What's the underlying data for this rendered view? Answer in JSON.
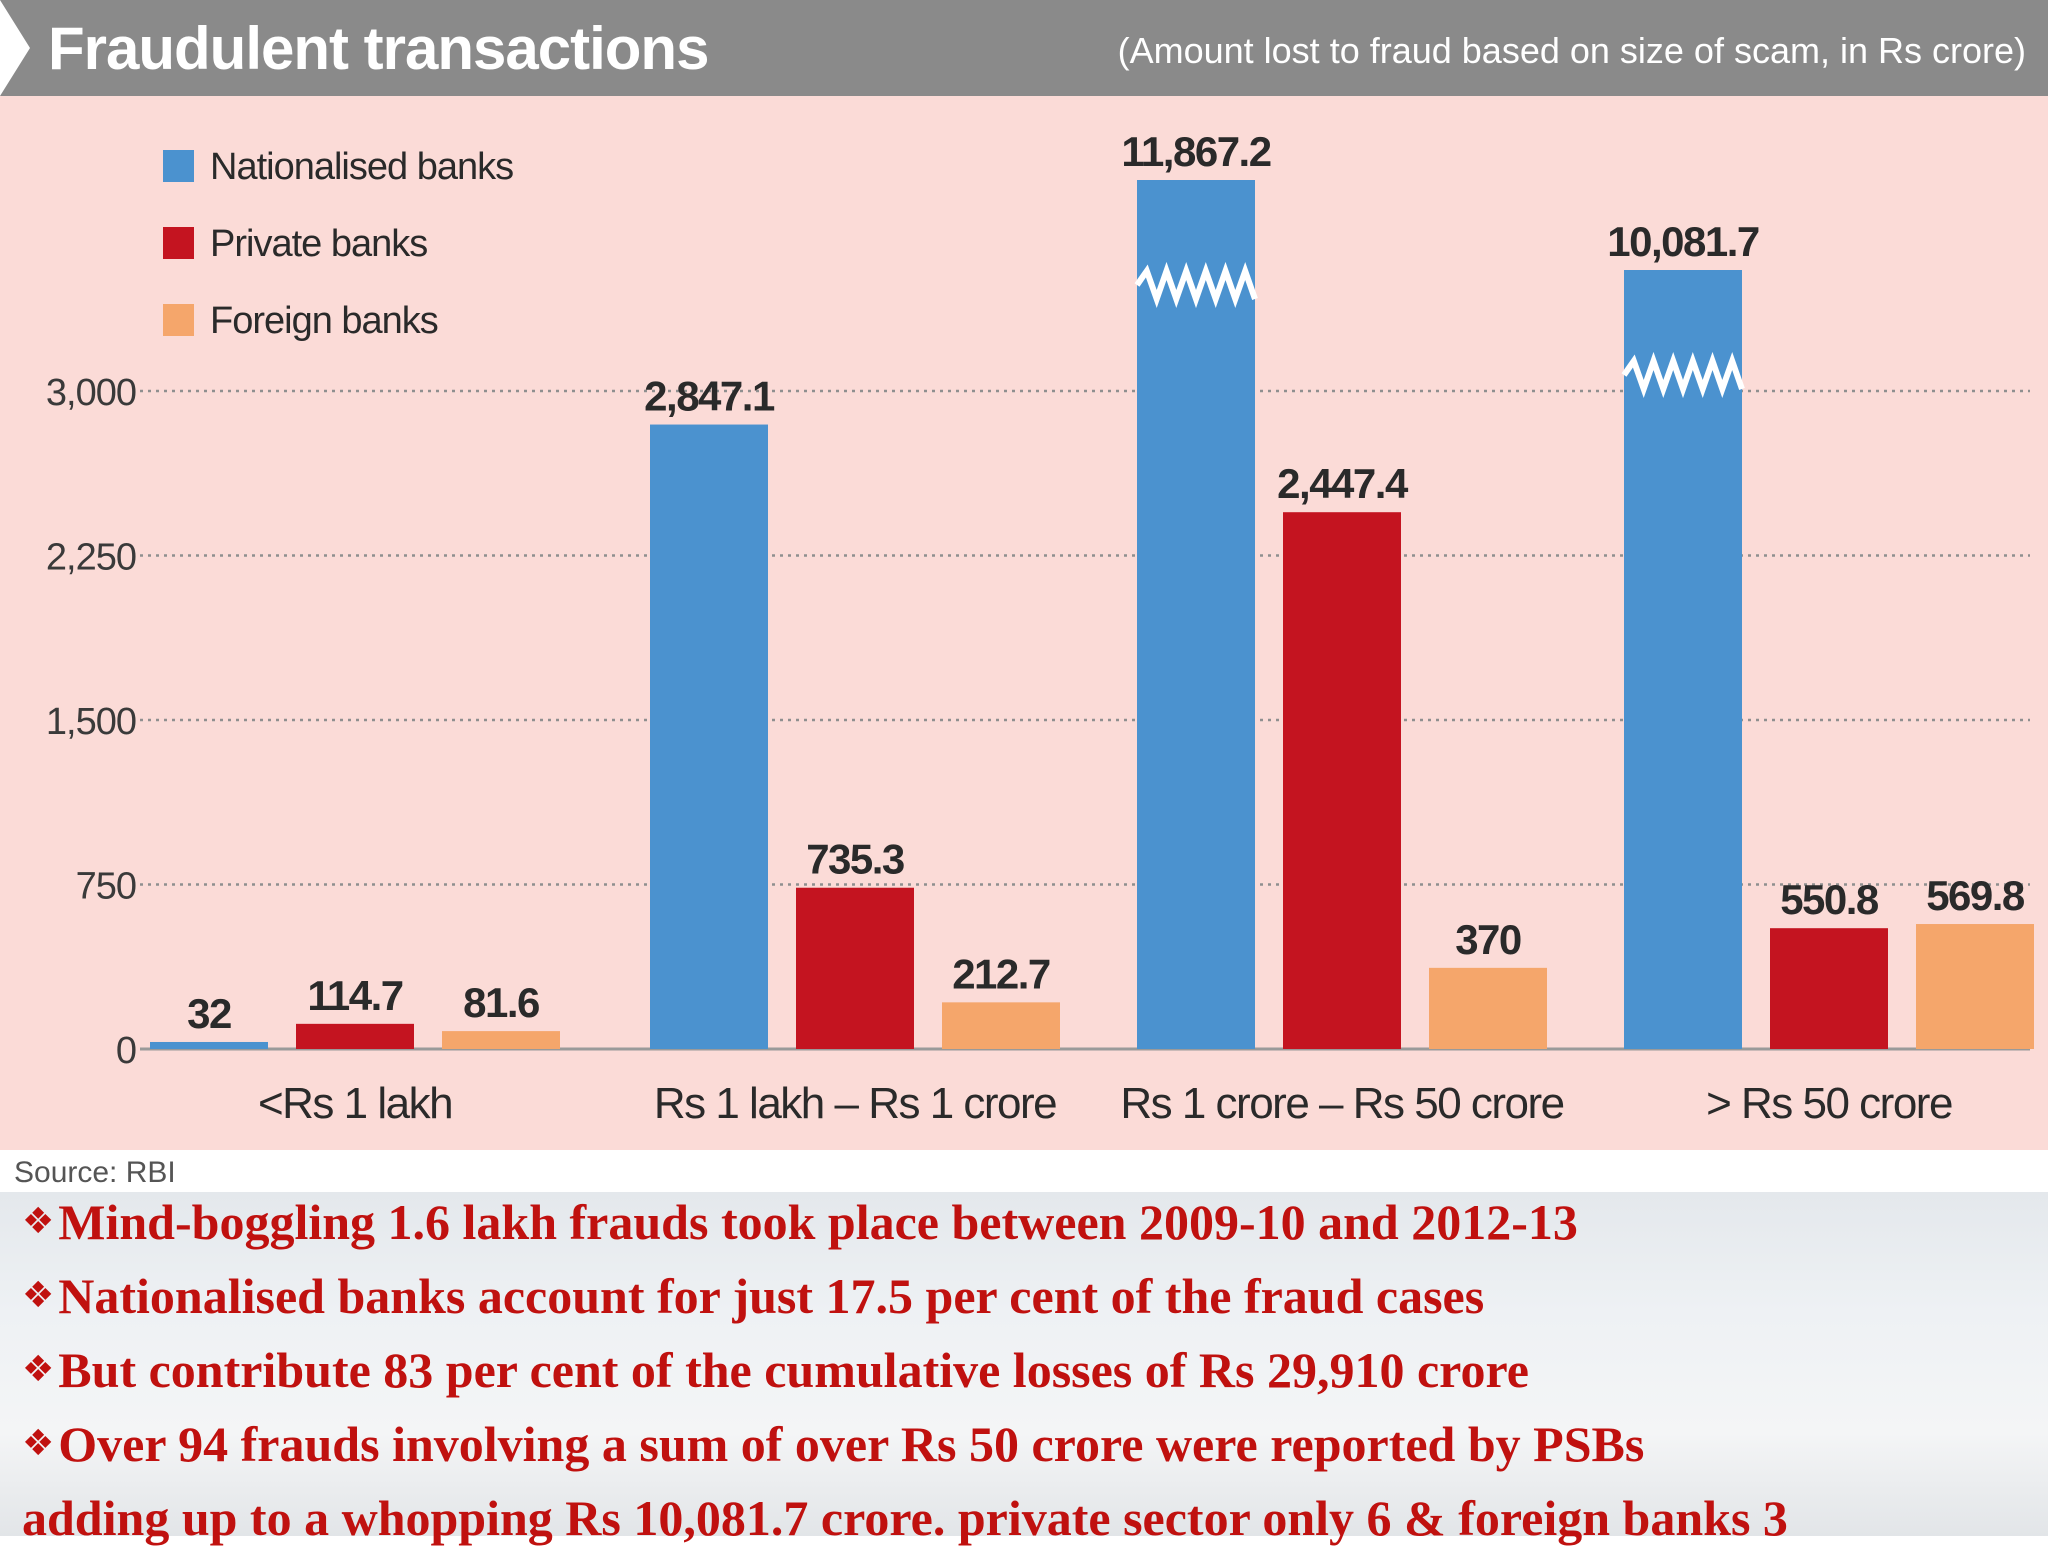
{
  "header": {
    "title": "Fraudulent transactions",
    "subtitle": "(Amount lost to fraud based on size of scam, in Rs crore)"
  },
  "chart_data": {
    "type": "bar",
    "categories": [
      "<Rs 1 lakh",
      "Rs 1 lakh – Rs 1 crore",
      "Rs 1 crore – Rs 50 crore",
      "> Rs 50 crore"
    ],
    "series": [
      {
        "name": "Nationalised banks",
        "color": "#4b92cf",
        "values": [
          32,
          2847.1,
          11867.2,
          10081.7
        ],
        "labels": [
          "32",
          "2,847.1",
          "11,867.2",
          "10,081.7"
        ]
      },
      {
        "name": "Private banks",
        "color": "#c41420",
        "values": [
          114.7,
          735.3,
          2447.4,
          550.8
        ],
        "labels": [
          "114.7",
          "735.3",
          "2,447.4",
          "550.8"
        ]
      },
      {
        "name": "Foreign banks",
        "color": "#f5a66b",
        "values": [
          81.6,
          212.7,
          370,
          569.8
        ],
        "labels": [
          "81.6",
          "212.7",
          "370",
          "569.8"
        ]
      }
    ],
    "yticks": [
      {
        "value": 0,
        "label": "0"
      },
      {
        "value": 750,
        "label": "750"
      },
      {
        "value": 1500,
        "label": "1,500"
      },
      {
        "value": 2250,
        "label": "2,250"
      },
      {
        "value": 3000,
        "label": "3,000"
      }
    ],
    "ylim": [
      0,
      3000
    ],
    "axis_break": true,
    "grid": true,
    "grid_style": "dotted",
    "legend_position": "top-left"
  },
  "source": "Source: RBI",
  "notes": {
    "bullet_icon": "❖",
    "lines": [
      {
        "bullet": true,
        "text": "Mind-boggling 1.6 lakh frauds took place between 2009-10 and 2012-13"
      },
      {
        "bullet": true,
        "text": "Nationalised banks account for just 17.5 per cent of the fraud cases"
      },
      {
        "bullet": true,
        "text": "But contribute 83 per cent of the cumulative losses of Rs 29,910 crore"
      },
      {
        "bullet": true,
        "text": "Over 94 frauds involving a sum of over Rs 50 crore were reported by PSBs"
      },
      {
        "bullet": false,
        "text": "adding up to a whopping Rs 10,081.7 crore. private sector only 6 & foreign banks 3"
      }
    ]
  }
}
